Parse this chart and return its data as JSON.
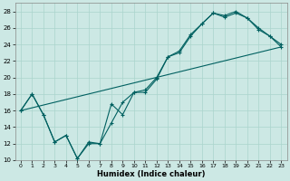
{
  "xlabel": "Humidex (Indice chaleur)",
  "background_color": "#cce8e4",
  "grid_color": "#aad4cc",
  "line_color": "#006060",
  "xlim": [
    -0.5,
    23.5
  ],
  "ylim": [
    10,
    29
  ],
  "xticks": [
    0,
    1,
    2,
    3,
    4,
    5,
    6,
    7,
    8,
    9,
    10,
    11,
    12,
    13,
    14,
    15,
    16,
    17,
    18,
    19,
    20,
    21,
    22,
    23
  ],
  "yticks": [
    10,
    12,
    14,
    16,
    18,
    20,
    22,
    24,
    26,
    28
  ],
  "line1_x": [
    0,
    1,
    2,
    3,
    4,
    5,
    6,
    7,
    8,
    9,
    10,
    11,
    12,
    13,
    14,
    15,
    16,
    17,
    18,
    19,
    20,
    21,
    22,
    23
  ],
  "line1_y": [
    16.0,
    18.0,
    15.5,
    12.2,
    13.0,
    10.2,
    12.0,
    12.0,
    14.5,
    17.0,
    18.2,
    18.5,
    20.0,
    22.5,
    23.0,
    25.0,
    26.5,
    27.8,
    27.3,
    27.8,
    27.2,
    26.0,
    25.0,
    23.7
  ],
  "line2_x": [
    0,
    1,
    2,
    3,
    4,
    5,
    6,
    7,
    8,
    9,
    10,
    11,
    12,
    13,
    14,
    15,
    16,
    17,
    18,
    19,
    20,
    21,
    22,
    23
  ],
  "line2_y": [
    16.0,
    18.0,
    15.5,
    12.2,
    13.0,
    10.2,
    12.2,
    12.0,
    16.8,
    15.5,
    18.2,
    18.2,
    19.8,
    22.5,
    23.2,
    25.2,
    26.5,
    27.8,
    27.5,
    28.0,
    27.2,
    25.8,
    25.0,
    24.0
  ],
  "line3_x": [
    0,
    23
  ],
  "line3_y": [
    16.0,
    23.7
  ]
}
